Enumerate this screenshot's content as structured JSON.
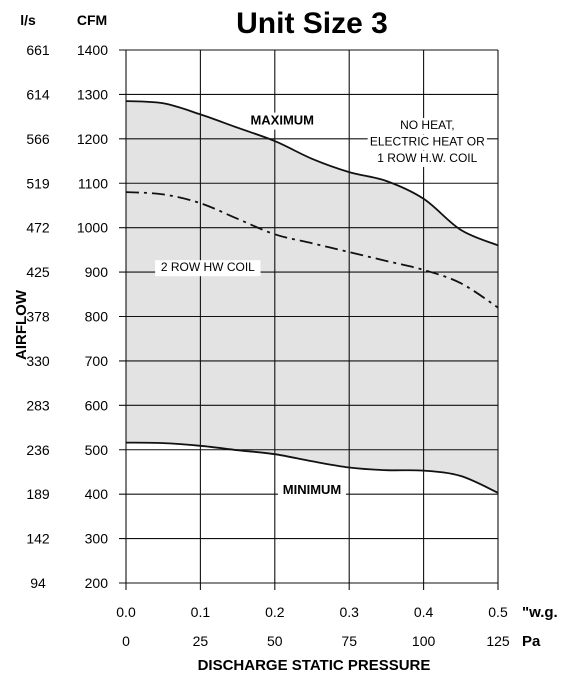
{
  "chart_data": {
    "type": "area",
    "title": "Unit Size 3",
    "xlabel": "DISCHARGE STATIC PRESSURE",
    "ylabel": "AIRFLOW",
    "x_unit_primary": "\"w.g.",
    "x_unit_secondary": "Pa",
    "y_unit_primary": "CFM",
    "y_unit_secondary": "l/s",
    "xlim": [
      0,
      0.5
    ],
    "ylim": [
      200,
      1400
    ],
    "grid": true,
    "x_ticks": [
      "0.0",
      "0.1",
      "0.2",
      "0.3",
      "0.4",
      "0.5"
    ],
    "x_ticks_pa": [
      "0",
      "25",
      "50",
      "75",
      "100",
      "125"
    ],
    "y_ticks_cfm": [
      "200",
      "300",
      "400",
      "500",
      "600",
      "700",
      "800",
      "900",
      "1000",
      "1100",
      "1200",
      "1300",
      "1400"
    ],
    "y_ticks_ls": [
      "94",
      "142",
      "189",
      "236",
      "283",
      "330",
      "378",
      "425",
      "472",
      "519",
      "566",
      "614",
      "661"
    ],
    "shaded_region": "between MAXIMUM and MINIMUM",
    "shade_color": "#e3e3e3",
    "series": [
      {
        "name": "MAXIMUM",
        "style": "solid",
        "x": [
          0.0,
          0.05,
          0.1,
          0.15,
          0.2,
          0.25,
          0.3,
          0.35,
          0.4,
          0.45,
          0.5
        ],
        "y": [
          1285,
          1280,
          1255,
          1225,
          1195,
          1155,
          1125,
          1105,
          1065,
          995,
          960
        ]
      },
      {
        "name": "2 ROW  HW COIL",
        "style": "dash-dot",
        "x": [
          0.0,
          0.05,
          0.1,
          0.15,
          0.2,
          0.25,
          0.3,
          0.35,
          0.4,
          0.45,
          0.5
        ],
        "y": [
          1080,
          1075,
          1055,
          1020,
          985,
          965,
          945,
          925,
          905,
          875,
          820
        ]
      },
      {
        "name": "MINIMUM",
        "style": "solid",
        "x": [
          0.0,
          0.05,
          0.1,
          0.15,
          0.2,
          0.25,
          0.3,
          0.35,
          0.4,
          0.45,
          0.5
        ],
        "y": [
          516,
          515,
          509,
          499,
          490,
          474,
          460,
          454,
          453,
          441,
          403
        ]
      }
    ],
    "annotations": [
      {
        "text": "MAXIMUM",
        "x": 0.21,
        "y": 1232
      },
      {
        "text": "NO HEAT,",
        "x": 0.405,
        "y": 1222
      },
      {
        "text": "ELECTRIC HEAT OR",
        "x": 0.405,
        "y": 1185
      },
      {
        "text": "1 ROW H.W. COIL",
        "x": 0.405,
        "y": 1148
      },
      {
        "text": "2 ROW  HW COIL",
        "x": 0.11,
        "y": 902
      },
      {
        "text": "MINIMUM",
        "x": 0.25,
        "y": 400
      }
    ]
  }
}
